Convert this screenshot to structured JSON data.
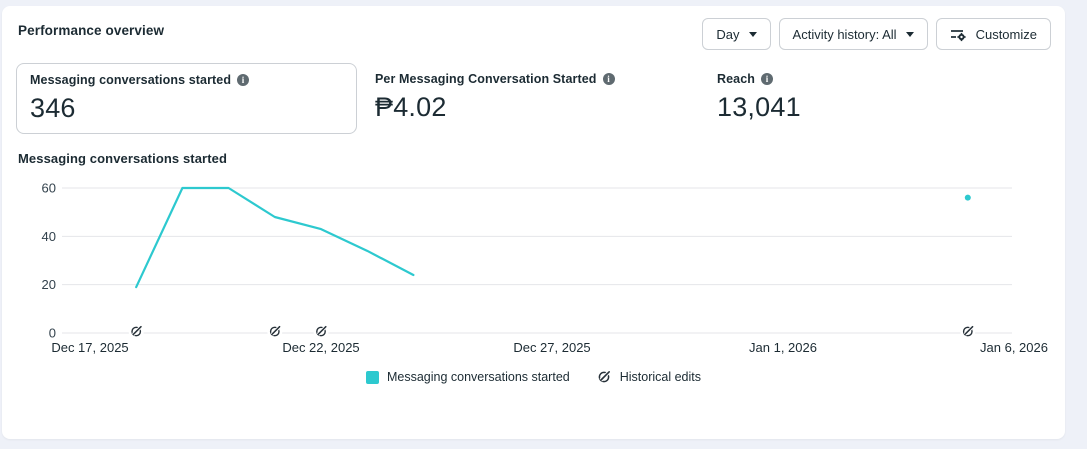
{
  "page": {
    "title": "Performance overview"
  },
  "toolbar": {
    "day_button": "Day",
    "activity_button": "Activity history: All",
    "customize_button": "Customize"
  },
  "metrics": [
    {
      "label": "Messaging conversations started",
      "value": "346"
    },
    {
      "label": "Per Messaging Conversation Started",
      "value": "₱4.02"
    },
    {
      "label": "Reach",
      "value": "13,041"
    }
  ],
  "chart": {
    "title": "Messaging conversations started"
  },
  "legend": {
    "series_label": "Messaging conversations started",
    "edits_label": "Historical edits"
  },
  "colors": {
    "series_teal": "#2dc9cf",
    "grid": "#e4e6ea",
    "text_dark": "#1c2b33"
  },
  "chart_data": {
    "type": "line",
    "title": "Messaging conversations started",
    "xlabel": "",
    "ylabel": "",
    "ylim": [
      0,
      60
    ],
    "grid": true,
    "legend_position": "bottom",
    "y_ticks": [
      0,
      20,
      40,
      60
    ],
    "x_ticks": [
      {
        "day": 0,
        "label": "Dec 17, 2025"
      },
      {
        "day": 5,
        "label": "Dec 22, 2025"
      },
      {
        "day": 10,
        "label": "Dec 27, 2025"
      },
      {
        "day": 15,
        "label": "Jan 1, 2026"
      },
      {
        "day": 20,
        "label": "Jan 6, 2026"
      }
    ],
    "series": [
      {
        "name": "Messaging conversations started",
        "color": "#2dc9cf",
        "points": [
          {
            "day": 1,
            "date": "Dec 18, 2025",
            "value": 19
          },
          {
            "day": 2,
            "date": "Dec 19, 2025",
            "value": 60
          },
          {
            "day": 3,
            "date": "Dec 20, 2025",
            "value": 60
          },
          {
            "day": 4,
            "date": "Dec 21, 2025",
            "value": 48
          },
          {
            "day": 5,
            "date": "Dec 22, 2025",
            "value": 43
          },
          {
            "day": 6,
            "date": "Dec 23, 2025",
            "value": 34
          },
          {
            "day": 7,
            "date": "Dec 24, 2025",
            "value": 24
          }
        ]
      }
    ],
    "isolated_points": [
      {
        "day": 19,
        "date": "Jan 5, 2026",
        "value": 56
      }
    ],
    "historical_edits": [
      {
        "day": 1,
        "date": "Dec 18, 2025"
      },
      {
        "day": 4,
        "date": "Dec 21, 2025"
      },
      {
        "day": 5,
        "date": "Dec 22, 2025"
      },
      {
        "day": 19,
        "date": "Jan 5, 2026"
      }
    ]
  }
}
